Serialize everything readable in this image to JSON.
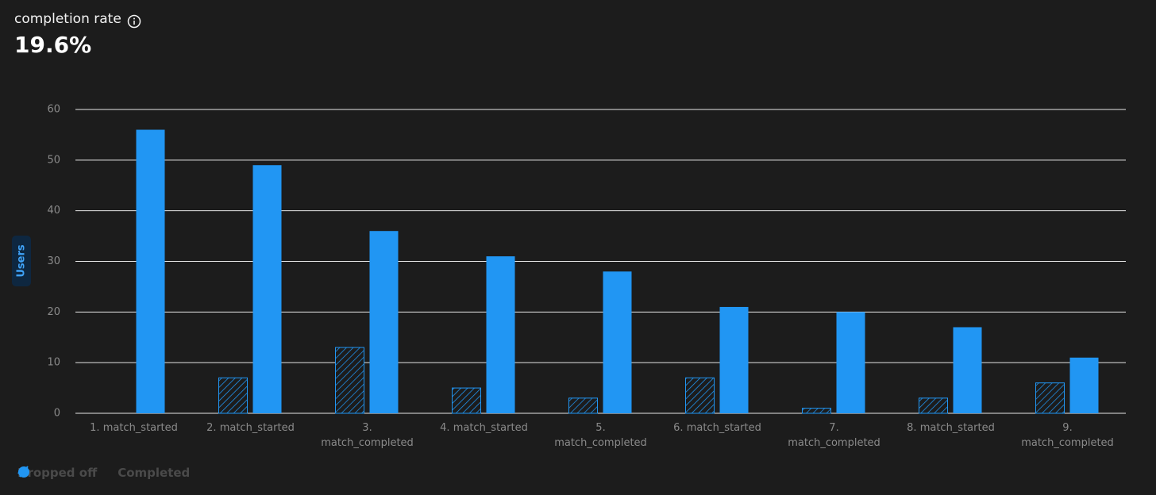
{
  "chart_data": {
    "type": "bar",
    "metric_label": "completion rate",
    "metric_value": "19.6%",
    "y_label": "Users",
    "categories": [
      "1. match_started",
      "2. match_started",
      "3. match_completed",
      "4. match_started",
      "5. match_completed",
      "6. match_started",
      "7. match_completed",
      "8. match_started",
      "9. match_completed"
    ],
    "series": [
      {
        "name": "Dropped off",
        "color": "#2196f3",
        "pattern": "hatch",
        "values": [
          null,
          7,
          13,
          5,
          3,
          7,
          1,
          3,
          6
        ]
      },
      {
        "name": "Completed",
        "color": "#2196f3",
        "values": [
          56,
          49,
          36,
          31,
          28,
          21,
          20,
          17,
          11
        ]
      }
    ],
    "ylim": [
      0,
      60
    ],
    "yticks": [
      0,
      10,
      20,
      30,
      40,
      50,
      60
    ],
    "grid": true,
    "legend": "bottom-left"
  }
}
